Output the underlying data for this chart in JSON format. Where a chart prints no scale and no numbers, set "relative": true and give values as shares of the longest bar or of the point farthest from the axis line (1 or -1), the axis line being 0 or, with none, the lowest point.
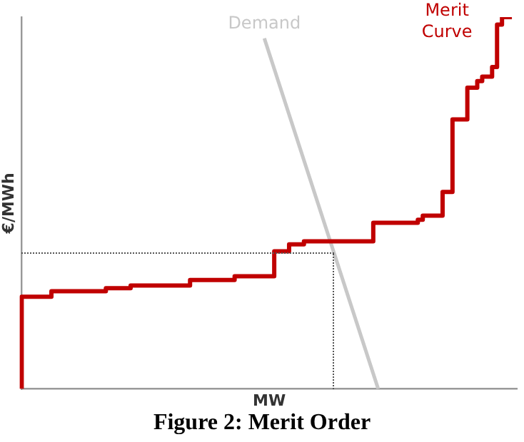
{
  "chart_data": {
    "type": "step",
    "title": "Figure 2: Merit Order",
    "xlabel": "MW",
    "ylabel": "€/MWh",
    "relative": true,
    "grid": false,
    "legend": false,
    "marker": "none",
    "categories": [
      null,
      null,
      null,
      null,
      null,
      null,
      null,
      null,
      null,
      null,
      null,
      null,
      null,
      null,
      null,
      null,
      null,
      null,
      null,
      null,
      null,
      null,
      null,
      null,
      null,
      null,
      null,
      null,
      null,
      null,
      null,
      null,
      null,
      null,
      null,
      null,
      null,
      null,
      null,
      null,
      null,
      null,
      null,
      null,
      null,
      null,
      null,
      null,
      null,
      null,
      null,
      null,
      null,
      null,
      null,
      null,
      null,
      null,
      null,
      null,
      null,
      null,
      null,
      null,
      null,
      null,
      null,
      null,
      null,
      null,
      null,
      null,
      null,
      null,
      null,
      null,
      null,
      null,
      null,
      null,
      null,
      null,
      null,
      null,
      null,
      null,
      null,
      null,
      null,
      null,
      null,
      null,
      null,
      null,
      null,
      null,
      null,
      null,
      null,
      null,
      null
    ],
    "series": [
      {
        "name": "Merit Curve",
        "color": "#c00000",
        "values": [
          0,
          0.248,
          0.248,
          0.248,
          0.248,
          0.248,
          0.248,
          0.263,
          0.263,
          0.263,
          0.263,
          0.263,
          0.263,
          0.263,
          0.263,
          0.263,
          0.263,
          0.263,
          0.271,
          0.271,
          0.271,
          0.271,
          0.271,
          0.278,
          0.278,
          0.278,
          0.278,
          0.278,
          0.278,
          0.278,
          0.278,
          0.278,
          0.278,
          0.278,
          0.278,
          0.293,
          0.293,
          0.293,
          0.293,
          0.293,
          0.293,
          0.293,
          0.293,
          0.293,
          0.303,
          0.303,
          0.303,
          0.303,
          0.303,
          0.303,
          0.303,
          0.303,
          0.37,
          0.37,
          0.37,
          0.389,
          0.389,
          0.389,
          0.397,
          0.397,
          0.397,
          0.397,
          0.397,
          0.397,
          0.397,
          0.397,
          0.397,
          0.397,
          0.397,
          0.397,
          0.397,
          0.397,
          0.447,
          0.447,
          0.447,
          0.447,
          0.447,
          0.447,
          0.447,
          0.447,
          0.447,
          0.455,
          0.466,
          0.466,
          0.466,
          0.466,
          0.53,
          0.53,
          0.725,
          0.725,
          0.725,
          0.81,
          0.81,
          0.828,
          0.84,
          0.84,
          0.866,
          0.98,
          1,
          1,
          null
        ]
      },
      {
        "name": "Demand",
        "type": "line",
        "color": "#c8c8c8",
        "values": [
          null,
          null,
          null,
          null,
          null,
          null,
          null,
          null,
          null,
          null,
          null,
          null,
          null,
          null,
          null,
          null,
          null,
          null,
          null,
          null,
          null,
          null,
          null,
          null,
          null,
          null,
          null,
          null,
          null,
          null,
          null,
          null,
          null,
          null,
          null,
          null,
          null,
          null,
          null,
          null,
          null,
          null,
          null,
          null,
          null,
          null,
          null,
          null,
          null,
          0.943,
          null,
          null,
          null,
          null,
          null,
          null,
          null,
          null,
          null,
          null,
          null,
          null,
          null,
          null,
          null,
          null,
          null,
          null,
          null,
          null,
          null,
          null,
          0,
          null,
          null,
          null,
          null,
          null,
          null,
          null,
          null,
          null,
          null,
          null,
          null,
          null,
          null,
          null,
          null,
          null,
          null,
          null,
          null,
          null,
          null,
          null,
          null,
          null,
          null,
          null,
          null
        ]
      }
    ]
  }
}
